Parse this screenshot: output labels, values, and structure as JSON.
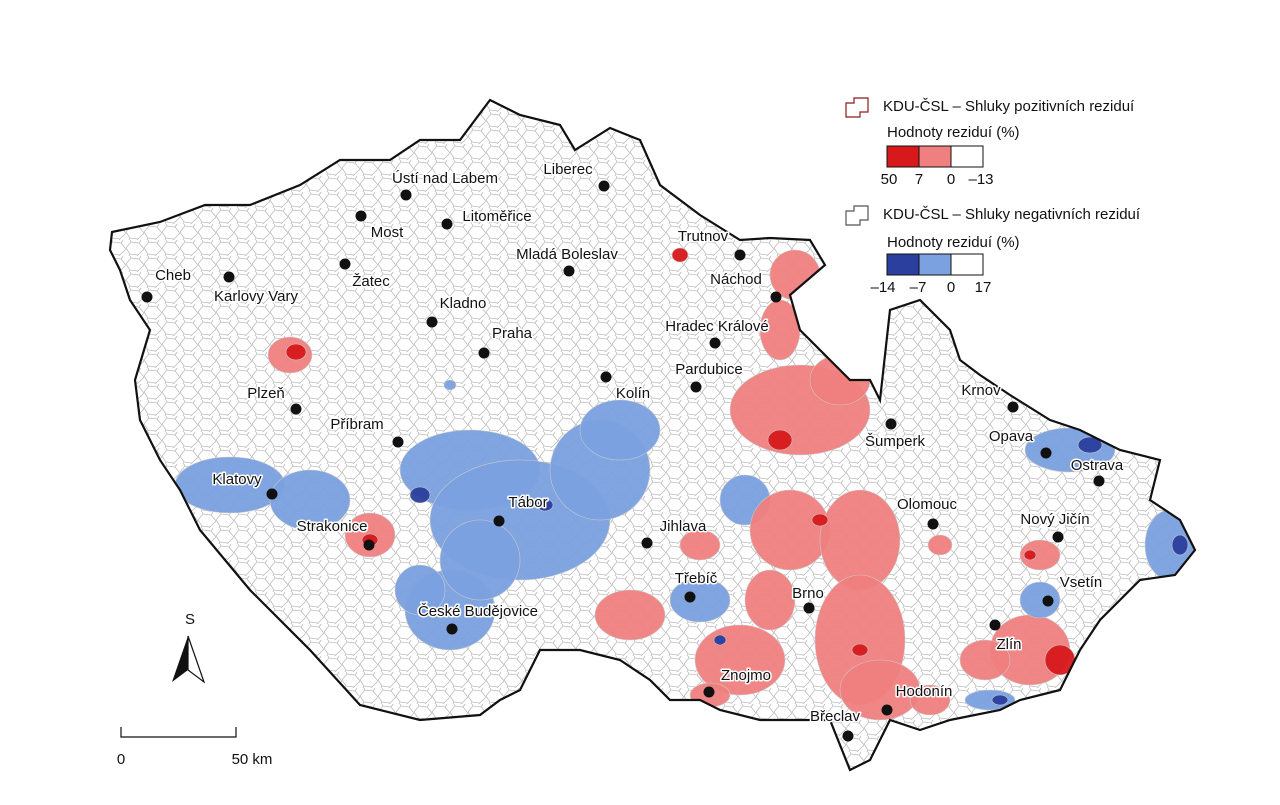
{
  "legend": {
    "positive": {
      "title": "KDU-ČSL – Shluky pozitivních reziduí",
      "subtitle": "Hodnoty reziduí (%)",
      "colors": [
        "#d7191c",
        "#f08080",
        "#ffffff"
      ],
      "labels": [
        "50",
        "7",
        "0",
        "–13"
      ]
    },
    "negative": {
      "title": "KDU-ČSL – Shluky negativních reziduí",
      "subtitle": "Hodnoty reziduí (%)",
      "colors": [
        "#2b3f9e",
        "#7ba1e0",
        "#ffffff"
      ],
      "labels": [
        "–14",
        "–7",
        "0",
        "17"
      ]
    }
  },
  "cities": [
    "Cheb",
    "Karlovy Vary",
    "Most",
    "Ústí nad Labem",
    "Litoměřice",
    "Liberec",
    "Žatec",
    "Mladá Boleslav",
    "Trutnov",
    "Náchod",
    "Kladno",
    "Praha",
    "Hradec Králové",
    "Pardubice",
    "Kolín",
    "Plzeň",
    "Příbram",
    "Krnov",
    "Opava",
    "Ostrava",
    "Šumperk",
    "Klatovy",
    "Tábor",
    "Strakonice",
    "Jihlava",
    "Olomouc",
    "Nový Jičín",
    "Třebíč",
    "Brno",
    "Vsetín",
    "České Budějovice",
    "Zlín",
    "Znojmo",
    "Hodonín",
    "Břeclav"
  ],
  "scale": {
    "labels": [
      "0",
      "50 km"
    ]
  },
  "north": "S"
}
